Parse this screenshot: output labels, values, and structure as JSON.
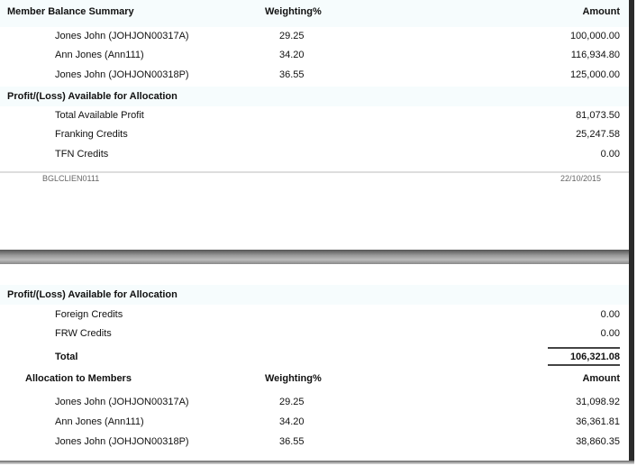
{
  "page1": {
    "header": {
      "title": "Member Balance Summary",
      "weighting": "Weighting%",
      "amount": "Amount"
    },
    "members": [
      {
        "name": "Jones John (JOHJON00317A)",
        "weighting": "29.25",
        "amount": "100,000.00"
      },
      {
        "name": "Ann Jones (Ann111)",
        "weighting": "34.20",
        "amount": "116,934.80"
      },
      {
        "name": "Jones John (JOHJON00318P)",
        "weighting": "36.55",
        "amount": "125,000.00"
      }
    ],
    "profit_title": "Profit/(Loss) Available for Allocation",
    "profit_rows": [
      {
        "label": "Total Available Profit",
        "amount": "81,073.50"
      },
      {
        "label": "Franking Credits",
        "amount": "25,247.58"
      },
      {
        "label": "TFN Credits",
        "amount": "0.00"
      }
    ],
    "footer": {
      "code": "BGLCLIEN0111",
      "date": "22/10/2015"
    }
  },
  "page2": {
    "profit_title": "Profit/(Loss) Available for Allocation",
    "profit_rows": [
      {
        "label": "Foreign Credits",
        "amount": "0.00"
      },
      {
        "label": "FRW Credits",
        "amount": "0.00"
      }
    ],
    "total": {
      "label": "Total",
      "amount": "106,321.08"
    },
    "allocation_header": {
      "title": "Allocation to Members",
      "weighting": "Weighting%",
      "amount": "Amount"
    },
    "allocations": [
      {
        "name": "Jones John (JOHJON00317A)",
        "weighting": "29.25",
        "amount": "31,098.92"
      },
      {
        "name": "Ann Jones (Ann111)",
        "weighting": "34.20",
        "amount": "36,361.81"
      },
      {
        "name": "Jones John (JOHJON00318P)",
        "weighting": "36.55",
        "amount": "38,860.35"
      }
    ]
  }
}
